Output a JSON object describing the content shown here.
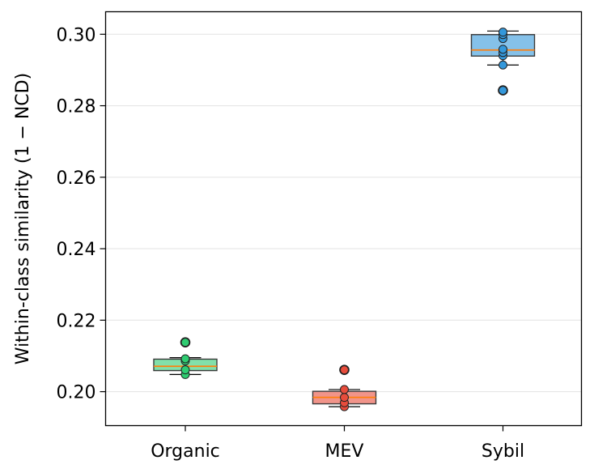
{
  "chart_data": {
    "type": "box",
    "title": "",
    "xlabel": "",
    "ylabel": "Within-class similarity (1 − NCD)",
    "ylim": [
      0.1905,
      0.3063
    ],
    "yticks": [
      "0.20",
      "0.22",
      "0.24",
      "0.26",
      "0.28",
      "0.30"
    ],
    "ytick_values": [
      0.2,
      0.22,
      0.24,
      0.26,
      0.28,
      0.3
    ],
    "grid": "y",
    "categories": [
      "Organic",
      "MEV",
      "Sybil"
    ],
    "boxes": [
      {
        "category": "Organic",
        "color": "#2ecc71",
        "whisker_low": 0.2048,
        "q1": 0.2059,
        "median": 0.2071,
        "q3": 0.2091,
        "whisker_high": 0.2095,
        "outliers": [
          0.2138
        ],
        "points": [
          0.2048,
          0.2061,
          0.2086,
          0.2092,
          0.2138
        ]
      },
      {
        "category": "MEV",
        "color": "#e74c3c",
        "whisker_low": 0.1958,
        "q1": 0.1966,
        "median": 0.1984,
        "q3": 0.2001,
        "whisker_high": 0.2006,
        "outliers": [
          0.2061
        ],
        "points": [
          0.1958,
          0.1969,
          0.1984,
          0.2006,
          0.2061
        ]
      },
      {
        "category": "Sybil",
        "color": "#3498db",
        "whisker_low": 0.2914,
        "q1": 0.2939,
        "median": 0.2956,
        "q3": 0.2999,
        "whisker_high": 0.3009,
        "outliers": [
          0.2843
        ],
        "points": [
          0.2843,
          0.2914,
          0.294,
          0.2949,
          0.2958,
          0.2988,
          0.2999,
          0.3006
        ]
      }
    ]
  }
}
